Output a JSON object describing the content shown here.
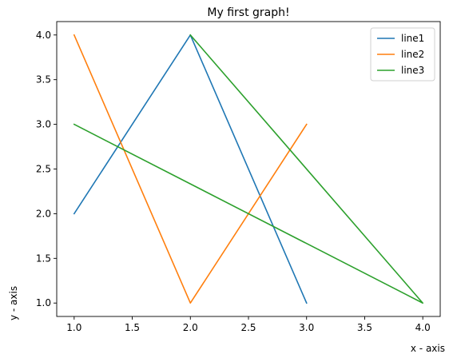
{
  "chart_data": {
    "type": "line",
    "title": "My first graph!",
    "xlabel": "x - axis",
    "ylabel": "y - axis",
    "xlim": [
      0.85,
      4.15
    ],
    "ylim": [
      0.85,
      4.15
    ],
    "xticks": [
      1.0,
      1.5,
      2.0,
      2.5,
      3.0,
      3.5,
      4.0
    ],
    "xtick_labels": [
      "1.0",
      "1.5",
      "2.0",
      "2.5",
      "3.0",
      "3.5",
      "4.0"
    ],
    "yticks": [
      1.0,
      1.5,
      2.0,
      2.5,
      3.0,
      3.5,
      4.0
    ],
    "ytick_labels": [
      "1.0",
      "1.5",
      "2.0",
      "2.5",
      "3.0",
      "3.5",
      "4.0"
    ],
    "grid": false,
    "legend_position": "top-right",
    "series": [
      {
        "name": "line1",
        "color": "#1f77b4",
        "x": [
          1,
          2,
          3
        ],
        "y": [
          2,
          4,
          1
        ]
      },
      {
        "name": "line2",
        "color": "#ff7f0e",
        "x": [
          1,
          2,
          3
        ],
        "y": [
          4,
          1,
          3
        ]
      },
      {
        "name": "line3",
        "color": "#2ca02c",
        "x": [
          2,
          4,
          1
        ],
        "y": [
          4,
          1,
          3
        ]
      }
    ]
  }
}
